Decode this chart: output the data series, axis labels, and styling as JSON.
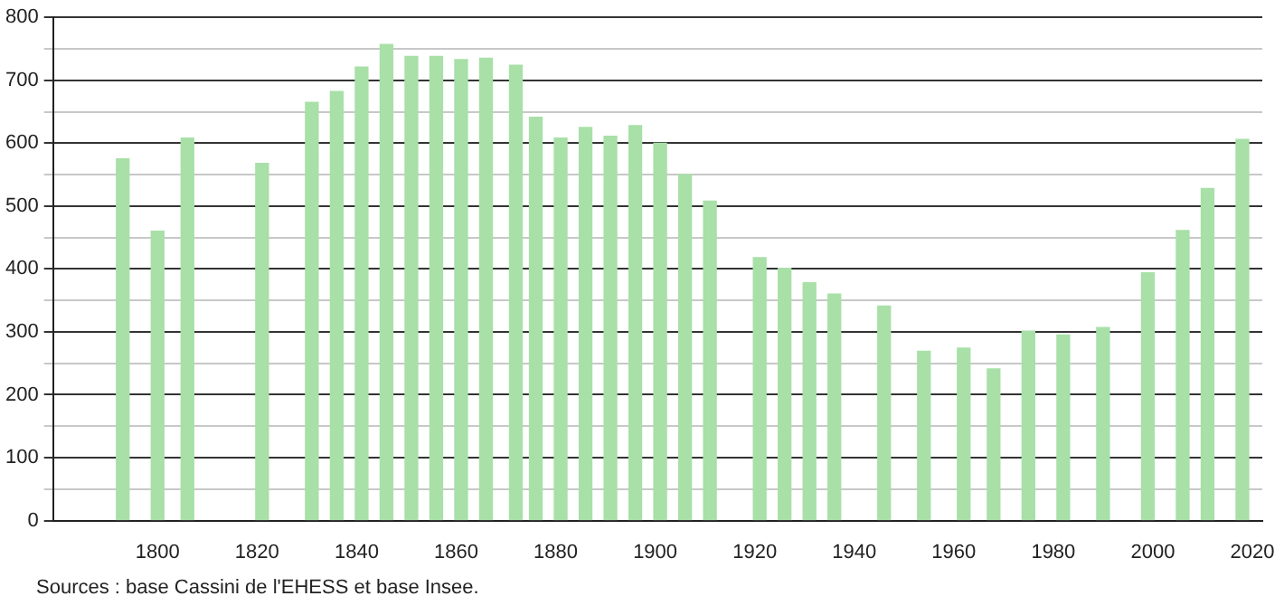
{
  "chart_data": {
    "type": "bar",
    "x": [
      1793,
      1800,
      1806,
      1821,
      1831,
      1836,
      1841,
      1846,
      1851,
      1856,
      1861,
      1866,
      1872,
      1876,
      1881,
      1886,
      1891,
      1896,
      1901,
      1906,
      1911,
      1921,
      1926,
      1931,
      1936,
      1946,
      1954,
      1962,
      1968,
      1975,
      1982,
      1990,
      1999,
      2006,
      2011,
      2018
    ],
    "values": [
      575,
      460,
      608,
      568,
      665,
      682,
      721,
      757,
      738,
      738,
      733,
      735,
      724,
      641,
      608,
      625,
      611,
      628,
      600,
      550,
      508,
      418,
      401,
      378,
      360,
      341,
      269,
      274,
      241,
      301,
      295,
      307,
      394,
      461,
      528,
      606
    ],
    "color": "#a8e0a8",
    "xlim": [
      1779,
      2022
    ],
    "xticks": [
      1800,
      1820,
      1840,
      1860,
      1880,
      1900,
      1920,
      1940,
      1960,
      1980,
      2000,
      2020
    ],
    "ylim": [
      0,
      800
    ],
    "yticks": [
      0,
      {
        "value": 50,
        "label": null
      },
      100,
      {
        "value": 150,
        "label": null
      },
      200,
      {
        "value": 250,
        "label": null
      },
      300,
      {
        "value": 350,
        "label": null
      },
      400,
      {
        "value": 450,
        "label": null
      },
      500,
      {
        "value": 550,
        "label": null
      },
      600,
      {
        "value": 650,
        "label": null
      },
      700,
      {
        "value": 750,
        "label": null
      },
      800
    ],
    "grid": "y",
    "legend": false,
    "annotations": [
      "Sources : base Cassini de l'EHESS et base Insee."
    ]
  }
}
